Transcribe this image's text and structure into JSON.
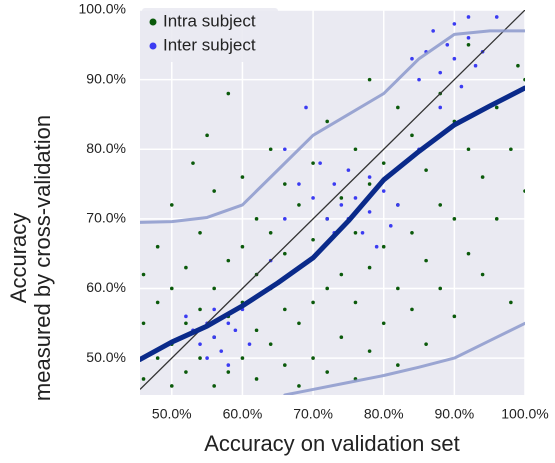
{
  "chart_data": {
    "type": "scatter",
    "xlabel": "Accuracy on validation set",
    "ylabel": [
      "Accuracy",
      "measured by cross-validation"
    ],
    "xlim": [
      45.5,
      100
    ],
    "ylim": [
      44.7,
      100
    ],
    "xticks": [
      {
        "value": 50,
        "label": "50.0%"
      },
      {
        "value": 60,
        "label": "60.0%"
      },
      {
        "value": 70,
        "label": "70.0%"
      },
      {
        "value": 80,
        "label": "80.0%"
      },
      {
        "value": 90,
        "label": "90.0%"
      },
      {
        "value": 100,
        "label": "100.0%"
      }
    ],
    "yticks": [
      {
        "value": 50,
        "label": "50.0%"
      },
      {
        "value": 60,
        "label": "60.0%"
      },
      {
        "value": 70,
        "label": "70.0%"
      },
      {
        "value": 80,
        "label": "80.0%"
      },
      {
        "value": 90,
        "label": "90.0%"
      },
      {
        "value": 100,
        "label": "100.0%"
      }
    ],
    "grid": true,
    "legend": "upper left",
    "series": [
      {
        "name": "Intra subject",
        "color": "#0b5a0b",
        "x": [
          46,
          46,
          46,
          48,
          48,
          48,
          50,
          50,
          50,
          50,
          52,
          52,
          52,
          53,
          54,
          54,
          54,
          55,
          56,
          56,
          56,
          56,
          58,
          58,
          58,
          58,
          60,
          60,
          60,
          60,
          62,
          62,
          62,
          62,
          64,
          64,
          64,
          64,
          66,
          66,
          66,
          66,
          68,
          68,
          68,
          68,
          70,
          70,
          70,
          70,
          72,
          72,
          72,
          72,
          74,
          74,
          74,
          76,
          76,
          76,
          76,
          78,
          78,
          78,
          78,
          80,
          80,
          80,
          82,
          82,
          82,
          82,
          84,
          84,
          84,
          86,
          86,
          86,
          88,
          88,
          88,
          90,
          90,
          90,
          92,
          92,
          92,
          94,
          94,
          96,
          96,
          98,
          98,
          99,
          100,
          100
        ],
        "values": [
          47,
          55,
          62,
          50,
          58,
          66,
          46,
          52,
          60,
          72,
          48,
          55,
          63,
          78,
          50,
          57,
          68,
          82,
          46,
          53,
          60,
          74,
          48,
          56,
          64,
          88,
          50,
          58,
          66,
          76,
          47,
          54,
          62,
          70,
          52,
          60,
          68,
          80,
          49,
          57,
          65,
          75,
          46,
          55,
          63,
          72,
          50,
          58,
          67,
          78,
          48,
          60,
          70,
          84,
          53,
          62,
          73,
          47,
          58,
          68,
          80,
          51,
          63,
          75,
          90,
          55,
          66,
          78,
          49,
          60,
          72,
          86,
          57,
          68,
          82,
          52,
          64,
          77,
          60,
          72,
          88,
          56,
          70,
          84,
          65,
          80,
          95,
          62,
          76,
          70,
          86,
          58,
          80,
          92,
          74,
          90
        ]
      },
      {
        "name": "Inter subject",
        "color": "#3b3bf2",
        "x": [
          52,
          53,
          54,
          55,
          55,
          56,
          56,
          57,
          58,
          58,
          59,
          60,
          61,
          66,
          68,
          70,
          71,
          72,
          73,
          73,
          74,
          75,
          75,
          76,
          77,
          78,
          78,
          79,
          80,
          81,
          82,
          64,
          66,
          69,
          85,
          86,
          87,
          88,
          89,
          90,
          90,
          91,
          92,
          93,
          94,
          88,
          85,
          96,
          84,
          92
        ],
        "values": [
          56,
          54,
          52,
          55,
          50,
          57,
          53,
          51,
          55,
          49,
          54,
          57,
          52,
          70,
          75,
          73,
          78,
          70,
          68,
          75,
          72,
          77,
          70,
          73,
          68,
          71,
          76,
          66,
          74,
          69,
          72,
          64,
          80,
          86,
          90,
          94,
          97,
          91,
          95,
          93,
          98,
          89,
          96,
          92,
          94,
          86,
          80,
          99,
          93,
          99
        ]
      }
    ],
    "lines": [
      {
        "color": "#0a2a8a",
        "x": [
          45.5,
          50,
          55,
          60,
          65,
          70,
          75,
          80,
          85,
          90,
          95,
          100
        ],
        "values": [
          49.8,
          52.3,
          54.6,
          57.5,
          60.8,
          64.4,
          69.7,
          75.6,
          79.7,
          83.5,
          86.2,
          88.8
        ]
      },
      {
        "color": "#8c99cc",
        "x": [
          45.5,
          50,
          55,
          60,
          65,
          70,
          75,
          80,
          85,
          90,
          95,
          100
        ],
        "values": [
          69.5,
          69.6,
          70.2,
          72,
          77,
          82,
          85,
          88,
          93,
          96.5,
          97,
          97
        ]
      },
      {
        "color": "#8c99cc",
        "x": [
          66,
          70,
          75,
          80,
          85,
          90,
          95,
          100
        ],
        "values": [
          44.7,
          45.5,
          46.5,
          47.5,
          48.7,
          50,
          52.5,
          55
        ]
      }
    ]
  }
}
